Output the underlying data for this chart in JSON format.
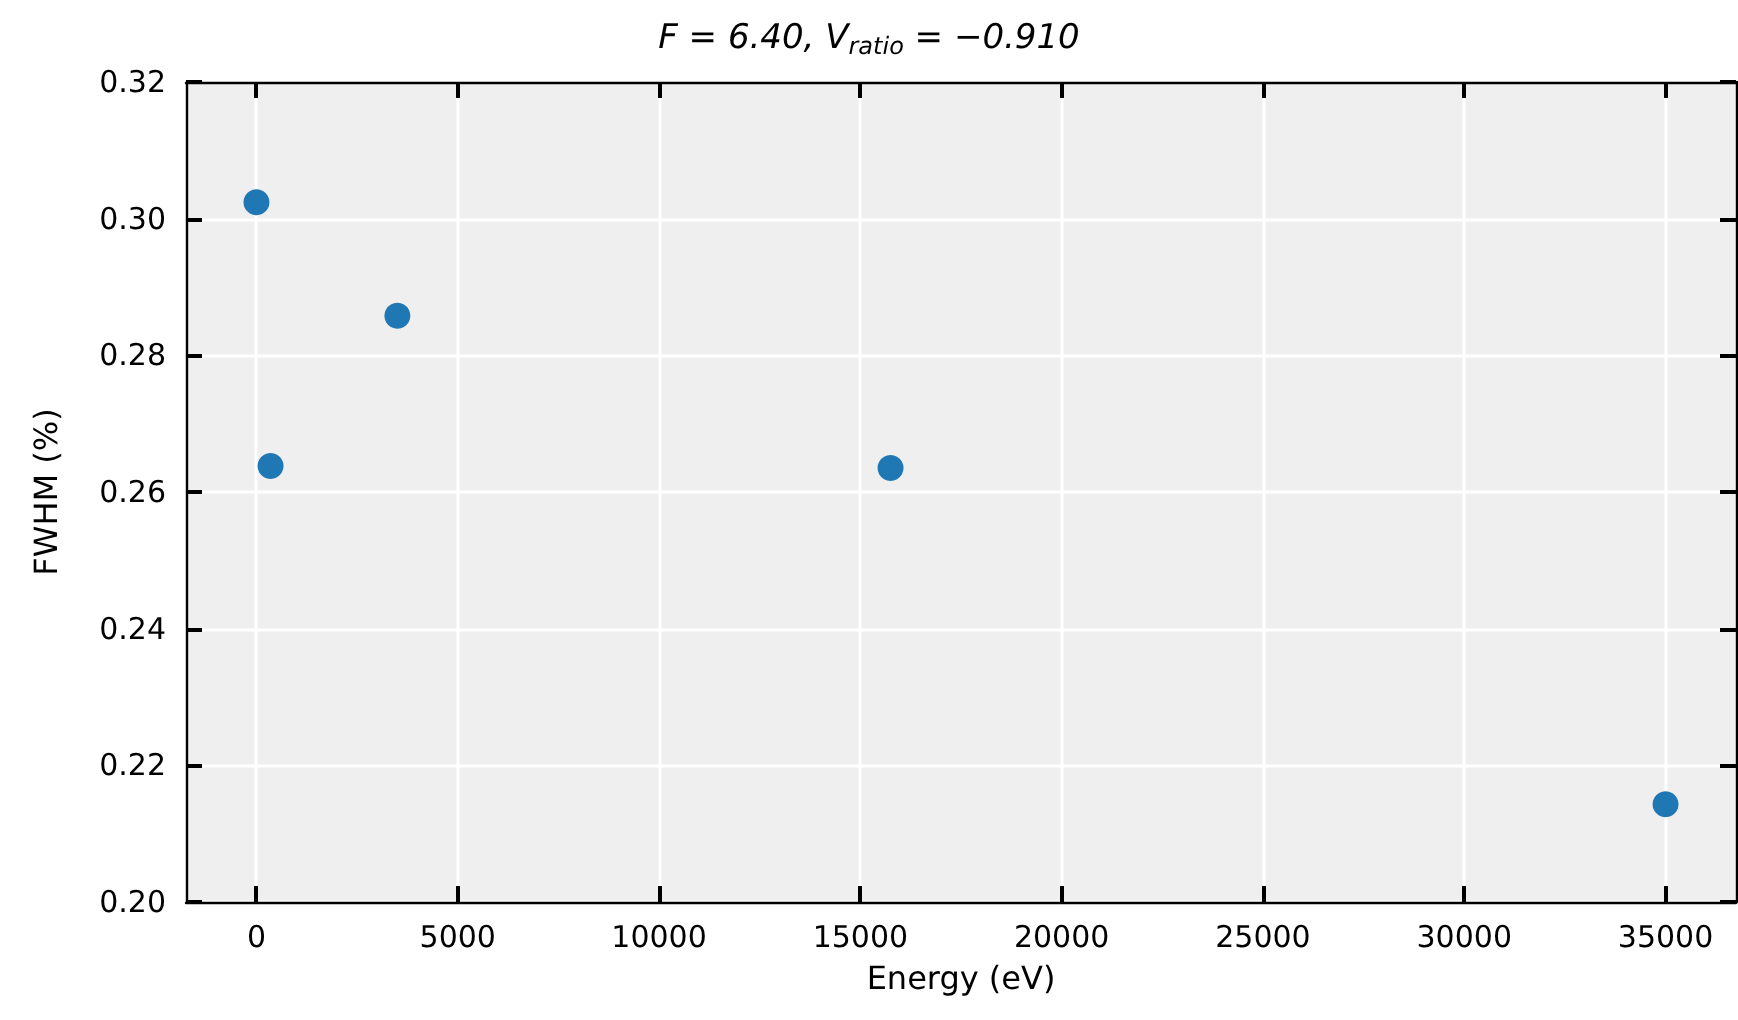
{
  "chart_data": {
    "type": "scatter",
    "title": "F = 6.40, V$_{ratio}$ = −0.910",
    "xlabel": "Energy (eV)",
    "ylabel": "FWHM (%)",
    "x": [
      0,
      350,
      3500,
      15750,
      35000
    ],
    "series": [
      {
        "color": "#1f77b4",
        "values": [
          0.3024,
          0.2638,
          0.2858,
          0.2635,
          0.2143
        ]
      }
    ],
    "xlim": [
      -1750,
      36750
    ],
    "xticks": [
      0,
      5000,
      10000,
      15000,
      20000,
      25000,
      30000,
      35000
    ],
    "ylim": [
      0.2,
      0.32
    ],
    "yticks": [
      {
        "value": 0.2,
        "label": "0.20"
      },
      0.22,
      0.24,
      0.26,
      0.28,
      {
        "value": 0.3,
        "label": "0.30"
      },
      0.32
    ],
    "grid": true,
    "marker": "circle"
  }
}
